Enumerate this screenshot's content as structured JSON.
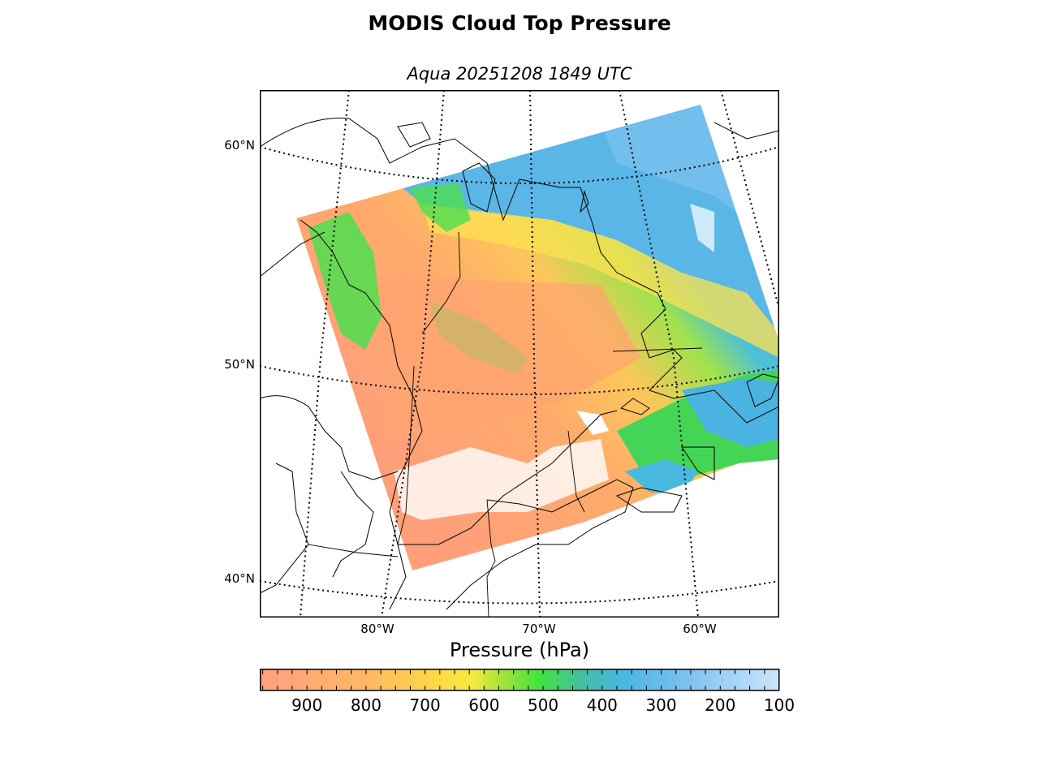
{
  "title": "MODIS Cloud Top Pressure",
  "subtitle": "Aqua 20251208 1849 UTC",
  "map": {
    "lat_labels": [
      "60°N",
      "50°N",
      "40°N"
    ],
    "lon_labels": [
      "80°W",
      "70°W",
      "60°W"
    ],
    "gridline_style": "dotted",
    "coastlines": true,
    "political_borders": true,
    "no_data_color": "#ffffff"
  },
  "colorbar": {
    "label": "Pressure (hPa)",
    "tick_labels": [
      "900",
      "800",
      "700",
      "600",
      "500",
      "400",
      "300",
      "200",
      "100"
    ],
    "range": [
      980,
      100
    ],
    "orientation": "horizontal",
    "colors": {
      "900": "#ff9f80",
      "800": "#ffb766",
      "700": "#fdd548",
      "600": "#d5ec3c",
      "500": "#4ee43e",
      "400": "#45bddf",
      "300": "#5eb6ec",
      "200": "#9cccf6",
      "100": "#c8e2fc"
    }
  }
}
